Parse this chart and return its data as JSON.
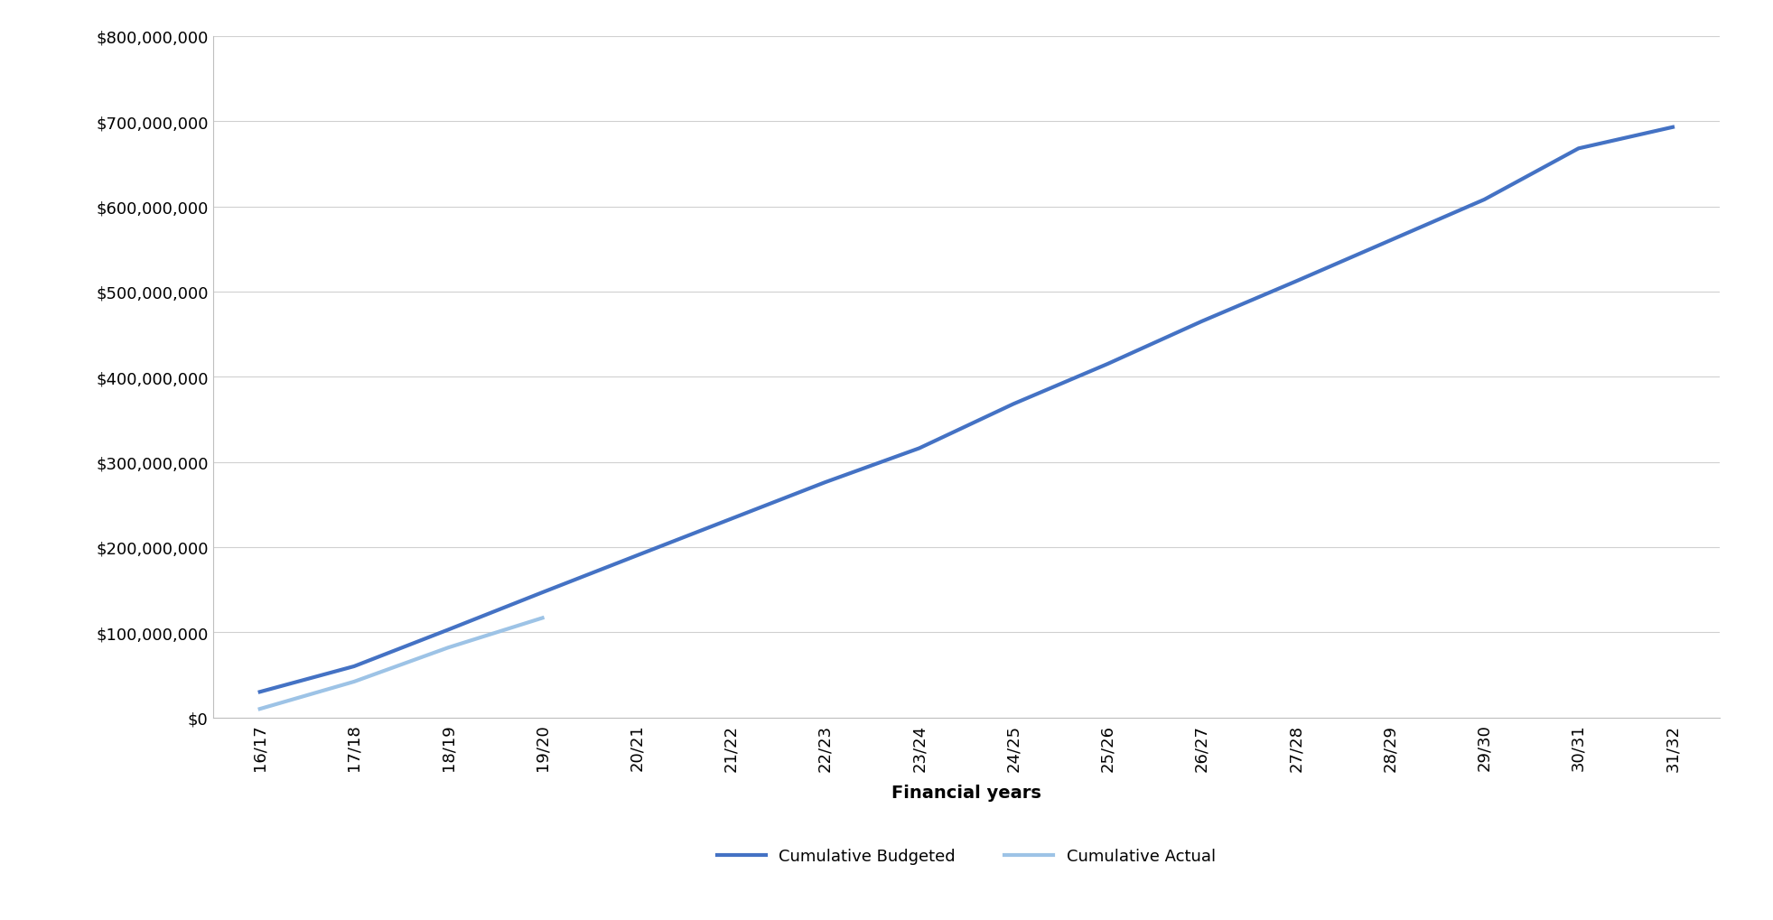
{
  "x_labels": [
    "16/17",
    "17/18",
    "18/19",
    "19/20",
    "20/21",
    "21/22",
    "22/23",
    "23/24",
    "24/25",
    "25/26",
    "26/27",
    "27/28",
    "28/29",
    "29/30",
    "30/31",
    "31/32"
  ],
  "cumulative_budgeted": [
    30000000,
    60000000,
    103000000,
    146800000,
    190000000,
    233000000,
    276000000,
    316000000,
    368000000,
    415000000,
    465000000,
    512000000,
    560000000,
    608000000,
    668000000,
    693000000
  ],
  "cumulative_actual": [
    10000000,
    42000000,
    82000000,
    116800000,
    null,
    null,
    null,
    null,
    null,
    null,
    null,
    null,
    null,
    null,
    null,
    null
  ],
  "budgeted_color": "#4472C4",
  "actual_color": "#9DC3E6",
  "line_width": 3.0,
  "xlabel": "Financial years",
  "xlabel_fontsize": 14,
  "xlabel_fontweight": "bold",
  "ylim": [
    0,
    800000000
  ],
  "ytick_step": 100000000,
  "legend_labels": [
    "Cumulative Budgeted",
    "Cumulative Actual"
  ],
  "background_color": "#ffffff",
  "plot_area_color": "#ffffff",
  "grid_color": "#d0d0d0",
  "tick_label_fontsize": 13,
  "legend_fontsize": 13,
  "spine_color": "#bfbfbf"
}
